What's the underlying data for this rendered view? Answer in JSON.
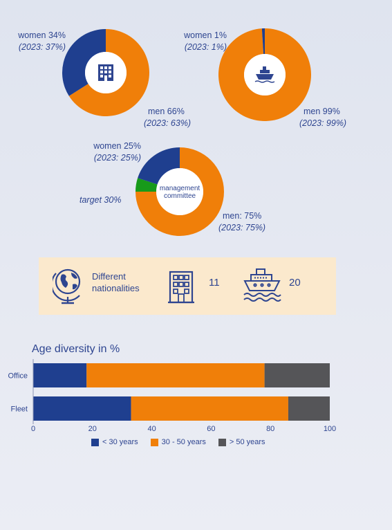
{
  "colors": {
    "navy": "#1f3f8f",
    "orange": "#f07f09",
    "green": "#179a1a",
    "grey": "#555558"
  },
  "donuts": {
    "office": {
      "icon": "office-building-icon",
      "women": {
        "label": "women 34%",
        "prev": "(2023: 37%)",
        "value": 34
      },
      "men": {
        "label": "men 66%",
        "prev": "(2023: 63%)",
        "value": 66
      }
    },
    "fleet": {
      "icon": "ship-icon",
      "women": {
        "label": "women 1%",
        "prev": "(2023: 1%)",
        "value": 1
      },
      "men": {
        "label": "men 99%",
        "prev": "(2023: 99%)",
        "value": 99
      }
    },
    "management": {
      "center_line1": "management",
      "center_line2": "committee",
      "women": {
        "label": "women 25%",
        "prev": "(2023: 25%)",
        "value": 25
      },
      "men": {
        "label": "men: 75%",
        "prev": "(2023: 75%)",
        "value": 75
      },
      "target": {
        "label": "target 30%",
        "value": 30
      }
    }
  },
  "nationalities": {
    "label_line1": "Different",
    "label_line2": "nationalities",
    "office_count": "11",
    "fleet_count": "20",
    "icons": [
      "globe-icon",
      "office-building-icon",
      "ship-icon"
    ]
  },
  "chart_data": {
    "type": "bar",
    "orientation": "horizontal",
    "stacked": true,
    "title": "Age diversity in %",
    "categories": [
      "Office",
      "Fleet"
    ],
    "series": [
      {
        "name": "< 30 years",
        "values": [
          18,
          33
        ],
        "color": "#1f3f8f"
      },
      {
        "name": "30 - 50 years",
        "values": [
          60,
          53
        ],
        "color": "#f07f09"
      },
      {
        "name": "> 50 years",
        "values": [
          22,
          14
        ],
        "color": "#555558"
      }
    ],
    "xlim": [
      0,
      100
    ],
    "xticks": [
      "0",
      "20",
      "40",
      "60",
      "80",
      "100"
    ],
    "legend": "bottom"
  }
}
